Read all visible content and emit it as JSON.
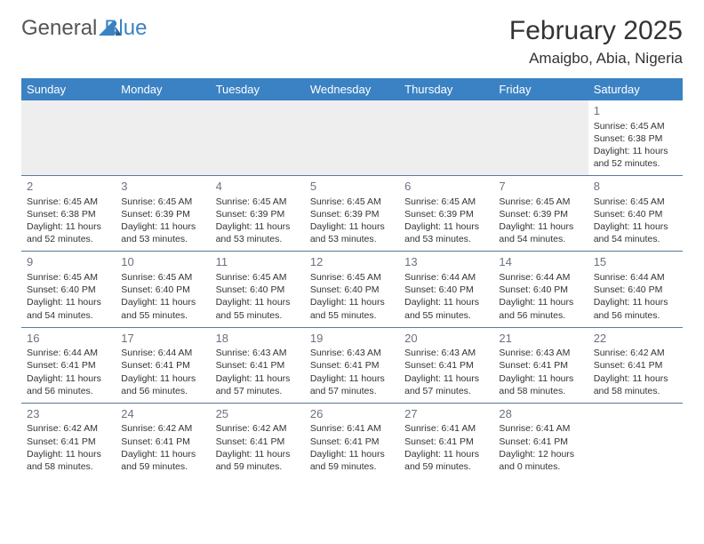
{
  "logo": {
    "general": "General",
    "blue": "Blue"
  },
  "title": "February 2025",
  "location": "Amaigbo, Abia, Nigeria",
  "colors": {
    "header_bg": "#3b82c4",
    "header_text": "#ffffff",
    "border": "#5a7a9a",
    "daynum": "#6b7280",
    "body_text": "#333333",
    "empty_bg": "#eeeeee"
  },
  "typography": {
    "title_fontsize": 30,
    "location_fontsize": 17,
    "weekday_fontsize": 13,
    "cell_fontsize": 10.5,
    "daynum_fontsize": 13
  },
  "weekdays": [
    "Sunday",
    "Monday",
    "Tuesday",
    "Wednesday",
    "Thursday",
    "Friday",
    "Saturday"
  ],
  "weeks": [
    [
      {
        "day": "",
        "lines": []
      },
      {
        "day": "",
        "lines": []
      },
      {
        "day": "",
        "lines": []
      },
      {
        "day": "",
        "lines": []
      },
      {
        "day": "",
        "lines": []
      },
      {
        "day": "",
        "lines": []
      },
      {
        "day": "1",
        "lines": [
          "Sunrise: 6:45 AM",
          "Sunset: 6:38 PM",
          "Daylight: 11 hours and 52 minutes."
        ]
      }
    ],
    [
      {
        "day": "2",
        "lines": [
          "Sunrise: 6:45 AM",
          "Sunset: 6:38 PM",
          "Daylight: 11 hours and 52 minutes."
        ]
      },
      {
        "day": "3",
        "lines": [
          "Sunrise: 6:45 AM",
          "Sunset: 6:39 PM",
          "Daylight: 11 hours and 53 minutes."
        ]
      },
      {
        "day": "4",
        "lines": [
          "Sunrise: 6:45 AM",
          "Sunset: 6:39 PM",
          "Daylight: 11 hours and 53 minutes."
        ]
      },
      {
        "day": "5",
        "lines": [
          "Sunrise: 6:45 AM",
          "Sunset: 6:39 PM",
          "Daylight: 11 hours and 53 minutes."
        ]
      },
      {
        "day": "6",
        "lines": [
          "Sunrise: 6:45 AM",
          "Sunset: 6:39 PM",
          "Daylight: 11 hours and 53 minutes."
        ]
      },
      {
        "day": "7",
        "lines": [
          "Sunrise: 6:45 AM",
          "Sunset: 6:39 PM",
          "Daylight: 11 hours and 54 minutes."
        ]
      },
      {
        "day": "8",
        "lines": [
          "Sunrise: 6:45 AM",
          "Sunset: 6:40 PM",
          "Daylight: 11 hours and 54 minutes."
        ]
      }
    ],
    [
      {
        "day": "9",
        "lines": [
          "Sunrise: 6:45 AM",
          "Sunset: 6:40 PM",
          "Daylight: 11 hours and 54 minutes."
        ]
      },
      {
        "day": "10",
        "lines": [
          "Sunrise: 6:45 AM",
          "Sunset: 6:40 PM",
          "Daylight: 11 hours and 55 minutes."
        ]
      },
      {
        "day": "11",
        "lines": [
          "Sunrise: 6:45 AM",
          "Sunset: 6:40 PM",
          "Daylight: 11 hours and 55 minutes."
        ]
      },
      {
        "day": "12",
        "lines": [
          "Sunrise: 6:45 AM",
          "Sunset: 6:40 PM",
          "Daylight: 11 hours and 55 minutes."
        ]
      },
      {
        "day": "13",
        "lines": [
          "Sunrise: 6:44 AM",
          "Sunset: 6:40 PM",
          "Daylight: 11 hours and 55 minutes."
        ]
      },
      {
        "day": "14",
        "lines": [
          "Sunrise: 6:44 AM",
          "Sunset: 6:40 PM",
          "Daylight: 11 hours and 56 minutes."
        ]
      },
      {
        "day": "15",
        "lines": [
          "Sunrise: 6:44 AM",
          "Sunset: 6:40 PM",
          "Daylight: 11 hours and 56 minutes."
        ]
      }
    ],
    [
      {
        "day": "16",
        "lines": [
          "Sunrise: 6:44 AM",
          "Sunset: 6:41 PM",
          "Daylight: 11 hours and 56 minutes."
        ]
      },
      {
        "day": "17",
        "lines": [
          "Sunrise: 6:44 AM",
          "Sunset: 6:41 PM",
          "Daylight: 11 hours and 56 minutes."
        ]
      },
      {
        "day": "18",
        "lines": [
          "Sunrise: 6:43 AM",
          "Sunset: 6:41 PM",
          "Daylight: 11 hours and 57 minutes."
        ]
      },
      {
        "day": "19",
        "lines": [
          "Sunrise: 6:43 AM",
          "Sunset: 6:41 PM",
          "Daylight: 11 hours and 57 minutes."
        ]
      },
      {
        "day": "20",
        "lines": [
          "Sunrise: 6:43 AM",
          "Sunset: 6:41 PM",
          "Daylight: 11 hours and 57 minutes."
        ]
      },
      {
        "day": "21",
        "lines": [
          "Sunrise: 6:43 AM",
          "Sunset: 6:41 PM",
          "Daylight: 11 hours and 58 minutes."
        ]
      },
      {
        "day": "22",
        "lines": [
          "Sunrise: 6:42 AM",
          "Sunset: 6:41 PM",
          "Daylight: 11 hours and 58 minutes."
        ]
      }
    ],
    [
      {
        "day": "23",
        "lines": [
          "Sunrise: 6:42 AM",
          "Sunset: 6:41 PM",
          "Daylight: 11 hours and 58 minutes."
        ]
      },
      {
        "day": "24",
        "lines": [
          "Sunrise: 6:42 AM",
          "Sunset: 6:41 PM",
          "Daylight: 11 hours and 59 minutes."
        ]
      },
      {
        "day": "25",
        "lines": [
          "Sunrise: 6:42 AM",
          "Sunset: 6:41 PM",
          "Daylight: 11 hours and 59 minutes."
        ]
      },
      {
        "day": "26",
        "lines": [
          "Sunrise: 6:41 AM",
          "Sunset: 6:41 PM",
          "Daylight: 11 hours and 59 minutes."
        ]
      },
      {
        "day": "27",
        "lines": [
          "Sunrise: 6:41 AM",
          "Sunset: 6:41 PM",
          "Daylight: 11 hours and 59 minutes."
        ]
      },
      {
        "day": "28",
        "lines": [
          "Sunrise: 6:41 AM",
          "Sunset: 6:41 PM",
          "Daylight: 12 hours and 0 minutes."
        ]
      },
      {
        "day": "",
        "lines": []
      }
    ]
  ]
}
